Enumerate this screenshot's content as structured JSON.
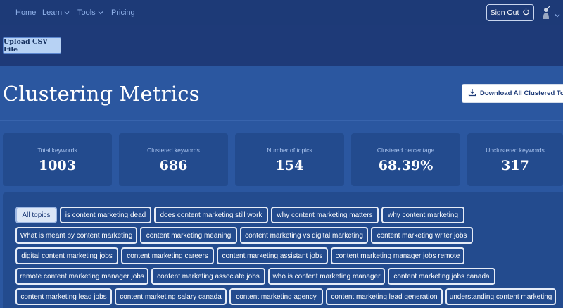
{
  "nav": {
    "home": "Home",
    "learn": "Learn",
    "tools": "Tools",
    "pricing": "Pricing",
    "sign_out": "Sign Out"
  },
  "upload": {
    "label": "Upload CSV File"
  },
  "page": {
    "title": "Clustering Metrics",
    "download_label": "Download  All Clustered Topics"
  },
  "metrics": [
    {
      "label": "Total keywords",
      "value": "1003"
    },
    {
      "label": "Clustered keywords",
      "value": "686"
    },
    {
      "label": "Number of topics",
      "value": "154"
    },
    {
      "label": "Clustered percentage",
      "value": "68.39%"
    },
    {
      "label": "Unclustered keywords",
      "value": "317"
    }
  ],
  "topics": [
    "All topics",
    "is content marketing dead",
    "does content marketing still work",
    "why content marketing matters",
    "why content marketing",
    "What is meant by content marketing",
    "content marketing meaning",
    "content marketing vs digital marketing",
    "content marketing writer jobs",
    "digital content marketing jobs",
    "content marketing careers",
    "content marketing assistant jobs",
    "content marketing manager jobs remote",
    "remote content marketing manager jobs",
    "content marketing associate jobs",
    "who is content marketing manager",
    "content marketing jobs canada",
    "content marketing lead jobs",
    "content marketing salary canada",
    "content marketing agency",
    "content marketing lead generation",
    "understanding content marketing"
  ]
}
